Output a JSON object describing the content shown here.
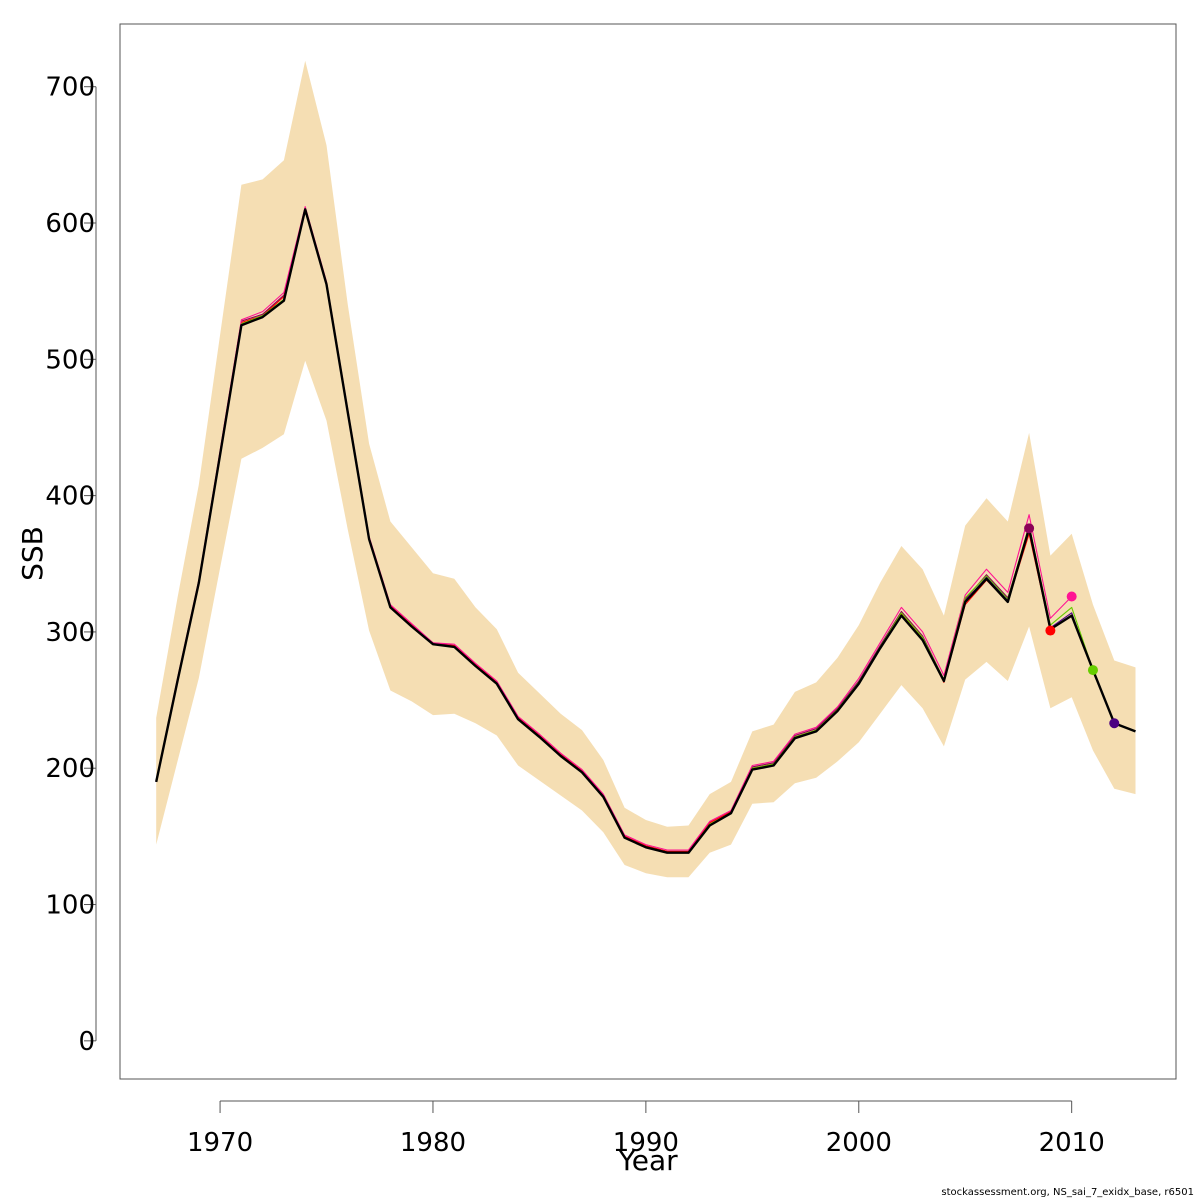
{
  "chart_data": {
    "type": "line",
    "xlabel": "Year",
    "ylabel": "SSB",
    "xlim": [
      1965.3,
      2014.9
    ],
    "ylim": [
      -28,
      746
    ],
    "x_ticks": [
      1970,
      1980,
      1990,
      2000,
      2010
    ],
    "y_ticks": [
      0,
      100,
      200,
      300,
      400,
      500,
      600,
      700
    ],
    "grid": false,
    "legend": "none",
    "colors": {
      "band": "#f5deb3",
      "base": "#000000",
      "retro_2008": "#8b0057",
      "retro_2009": "#ff0000",
      "retro_2010": "#ff1493",
      "retro_2011": "#66cd00",
      "retro_2012": "#4b0082"
    },
    "band": {
      "years": [
        1967,
        1968,
        1969,
        1970,
        1971,
        1972,
        1973,
        1974,
        1975,
        1976,
        1977,
        1978,
        1979,
        1980,
        1981,
        1982,
        1983,
        1984,
        1985,
        1986,
        1987,
        1988,
        1989,
        1990,
        1991,
        1992,
        1993,
        1994,
        1995,
        1996,
        1997,
        1998,
        1999,
        2000,
        2001,
        2002,
        2003,
        2004,
        2005,
        2006,
        2007,
        2008,
        2009,
        2010,
        2011,
        2012,
        2013
      ],
      "upper": [
        237,
        325,
        408,
        518,
        628,
        632,
        646,
        719,
        657,
        540,
        438,
        381,
        362,
        343,
        339,
        318,
        302,
        270,
        255,
        240,
        228,
        206,
        171,
        162,
        157,
        158,
        181,
        190,
        227,
        232,
        256,
        263,
        281,
        305,
        336,
        363,
        346,
        312,
        378,
        398,
        381,
        446,
        356,
        372,
        320,
        279,
        274
      ],
      "lower": [
        144,
        205,
        266,
        347,
        427,
        435,
        445,
        499,
        455,
        375,
        301,
        257,
        249,
        239,
        240,
        233,
        224,
        202,
        191,
        180,
        169,
        153,
        129,
        123,
        120,
        120,
        138,
        144,
        174,
        175,
        189,
        193,
        205,
        219,
        240,
        261,
        244,
        216,
        265,
        278,
        264,
        304,
        244,
        252,
        213,
        185,
        181
      ]
    },
    "series": [
      {
        "name": "",
        "color": "#000000",
        "x": [
          1967,
          1968,
          1969,
          1970,
          1971,
          1972,
          1973,
          1974,
          1975,
          1976,
          1977,
          1978,
          1979,
          1980,
          1981,
          1982,
          1983,
          1984,
          1985,
          1986,
          1987,
          1988,
          1989,
          1990,
          1991,
          1992,
          1993,
          1994,
          1995,
          1996,
          1997,
          1998,
          1999,
          2000,
          2001,
          2002,
          2003,
          2004,
          2005,
          2006,
          2007,
          2008,
          2009,
          2010,
          2011,
          2012,
          2013
        ],
        "y": [
          190,
          264,
          336,
          430,
          525,
          531,
          543,
          610,
          555,
          461,
          368,
          318,
          304,
          291,
          289,
          275,
          262,
          236,
          223,
          209,
          197,
          179,
          149,
          142,
          138,
          138,
          158,
          167,
          199,
          202,
          222,
          227,
          242,
          262,
          288,
          312,
          294,
          264,
          322,
          339,
          322,
          376,
          302,
          312,
          272,
          233,
          227
        ]
      },
      {
        "name": "",
        "color": "#8b0057",
        "x": [
          1967,
          1968,
          1969,
          1970,
          1971,
          1972,
          1973,
          1974,
          1975,
          1976,
          1977,
          1978,
          1979,
          1980,
          1981,
          1982,
          1983,
          1984,
          1985,
          1986,
          1987,
          1988,
          1989,
          1990,
          1991,
          1992,
          1993,
          1994,
          1995,
          1996,
          1997,
          1998,
          1999,
          2000,
          2001,
          2002,
          2003,
          2004,
          2005,
          2006,
          2007,
          2008
        ],
        "y": [
          190,
          265,
          337,
          432,
          528,
          533,
          547,
          611,
          556,
          462,
          369,
          319,
          305,
          292,
          290,
          276,
          263,
          237,
          224,
          210,
          198,
          180,
          150,
          143,
          139,
          139,
          160,
          168,
          201,
          204,
          224,
          229,
          244,
          264,
          290,
          315,
          297,
          265,
          324,
          342,
          325,
          376
        ]
      },
      {
        "name": "",
        "color": "#ff0000",
        "x": [
          1967,
          1968,
          1969,
          1970,
          1971,
          1972,
          1973,
          1974,
          1975,
          1976,
          1977,
          1978,
          1979,
          1980,
          1981,
          1982,
          1983,
          1984,
          1985,
          1986,
          1987,
          1988,
          1989,
          1990,
          1991,
          1992,
          1993,
          1994,
          1995,
          1996,
          1997,
          1998,
          1999,
          2000,
          2001,
          2002,
          2003,
          2004,
          2005,
          2006,
          2007,
          2008,
          2009
        ],
        "y": [
          190,
          265,
          337,
          431,
          527,
          532,
          546,
          611,
          556,
          462,
          369,
          319,
          305,
          291,
          290,
          276,
          263,
          237,
          224,
          210,
          198,
          180,
          150,
          143,
          139,
          139,
          160,
          168,
          200,
          203,
          223,
          228,
          243,
          262,
          288,
          313,
          295,
          263,
          320,
          338,
          322,
          372,
          301
        ]
      },
      {
        "name": "",
        "color": "#ff1493",
        "x": [
          1967,
          1968,
          1969,
          1970,
          1971,
          1972,
          1973,
          1974,
          1975,
          1976,
          1977,
          1978,
          1979,
          1980,
          1981,
          1982,
          1983,
          1984,
          1985,
          1986,
          1987,
          1988,
          1989,
          1990,
          1991,
          1992,
          1993,
          1994,
          1995,
          1996,
          1997,
          1998,
          1999,
          2000,
          2001,
          2002,
          2003,
          2004,
          2005,
          2006,
          2007,
          2008,
          2009,
          2010
        ],
        "y": [
          191,
          266,
          338,
          433,
          529,
          535,
          549,
          612,
          557,
          463,
          370,
          320,
          306,
          292,
          291,
          277,
          264,
          238,
          225,
          211,
          199,
          181,
          151,
          144,
          140,
          140,
          161,
          169,
          202,
          205,
          225,
          230,
          245,
          266,
          292,
          318,
          300,
          268,
          327,
          346,
          329,
          386,
          310,
          326
        ]
      },
      {
        "name": "",
        "color": "#66cd00",
        "x": [
          1967,
          1968,
          1969,
          1970,
          1971,
          1972,
          1973,
          1974,
          1975,
          1976,
          1977,
          1978,
          1979,
          1980,
          1981,
          1982,
          1983,
          1984,
          1985,
          1986,
          1987,
          1988,
          1989,
          1990,
          1991,
          1992,
          1993,
          1994,
          1995,
          1996,
          1997,
          1998,
          1999,
          2000,
          2001,
          2002,
          2003,
          2004,
          2005,
          2006,
          2007,
          2008,
          2009,
          2010,
          2011
        ],
        "y": [
          190,
          264,
          336,
          430,
          526,
          532,
          544,
          610,
          555,
          461,
          368,
          318,
          304,
          291,
          289,
          275,
          262,
          236,
          223,
          209,
          197,
          179,
          149,
          142,
          138,
          138,
          159,
          167,
          200,
          203,
          223,
          228,
          243,
          263,
          289,
          314,
          296,
          265,
          325,
          341,
          324,
          378,
          305,
          318,
          272
        ]
      },
      {
        "name": "",
        "color": "#4b0082",
        "x": [
          1967,
          1968,
          1969,
          1970,
          1971,
          1972,
          1973,
          1974,
          1975,
          1976,
          1977,
          1978,
          1979,
          1980,
          1981,
          1982,
          1983,
          1984,
          1985,
          1986,
          1987,
          1988,
          1989,
          1990,
          1991,
          1992,
          1993,
          1994,
          1995,
          1996,
          1997,
          1998,
          1999,
          2000,
          2001,
          2002,
          2003,
          2004,
          2005,
          2006,
          2007,
          2008,
          2009,
          2010,
          2011,
          2012
        ],
        "y": [
          190,
          264,
          336,
          430,
          525,
          531,
          543,
          610,
          555,
          461,
          368,
          318,
          304,
          291,
          289,
          275,
          262,
          236,
          223,
          209,
          197,
          179,
          149,
          142,
          138,
          138,
          158,
          167,
          199,
          202,
          222,
          227,
          242,
          262,
          288,
          312,
          294,
          264,
          323,
          340,
          323,
          377,
          303,
          314,
          271,
          233
        ]
      }
    ],
    "terminal_points": [
      {
        "year": 2008,
        "value": 376,
        "color": "#8b0057"
      },
      {
        "year": 2009,
        "value": 301,
        "color": "#ff0000"
      },
      {
        "year": 2010,
        "value": 326,
        "color": "#ff1493"
      },
      {
        "year": 2011,
        "value": 272,
        "color": "#66cd00"
      },
      {
        "year": 2012,
        "value": 233,
        "color": "#4b0082"
      }
    ]
  },
  "footer": "stockassessment.org, NS_sai_7_exidx_base, r6501"
}
